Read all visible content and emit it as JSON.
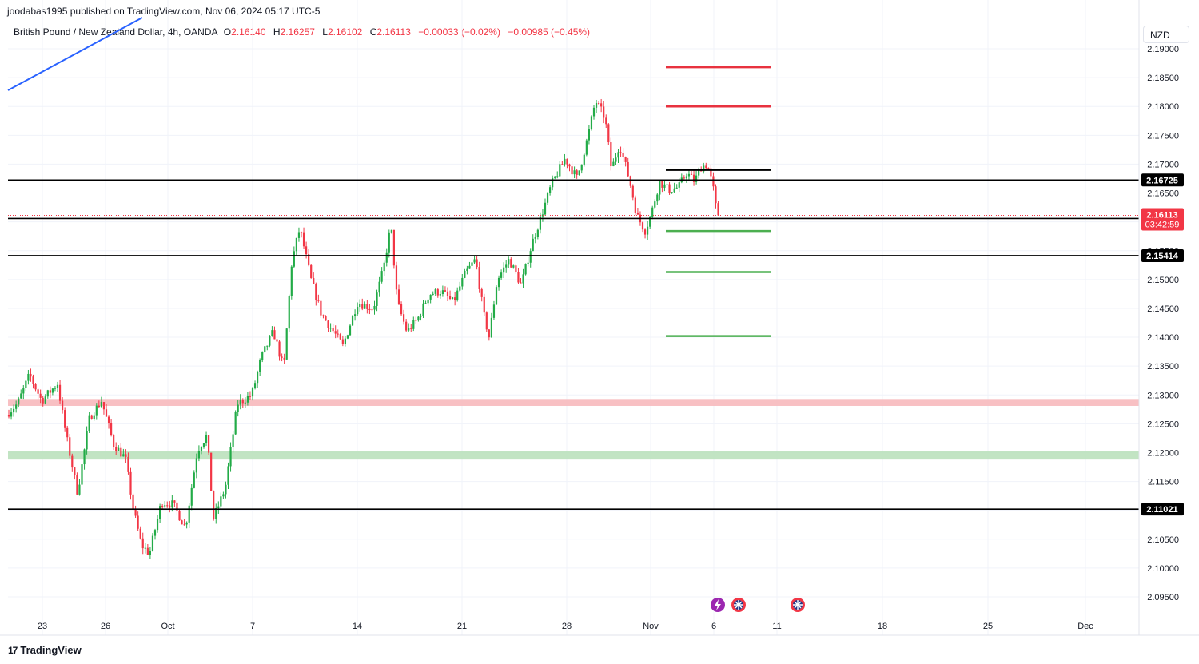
{
  "publisher_line": "joodabas1995 published on TradingView.com, Nov 06, 2024 05:17 UTC-5",
  "legend": {
    "symbol": "British Pound / New Zealand Dollar, 4h, OANDA",
    "o_label": "O",
    "o": "2.16140",
    "h_label": "H",
    "h": "2.16257",
    "l_label": "L",
    "l": "2.16102",
    "c_label": "C",
    "c": "2.16113",
    "change": "−0.00033 (−0.02%)",
    "change2": "−0.00985 (−0.45%)"
  },
  "currency_button": "NZD",
  "footer_brand": "TradingView",
  "footer_mark": "17",
  "colors": {
    "up": "#089981",
    "up_body": "#22ab47",
    "down": "#f23645",
    "line": "#000000",
    "trend": "#2962ff",
    "resistance_zone": "#f7b5b8",
    "support_zone": "#b7dfb9",
    "target_red": "#e8323f",
    "target_green": "#4caf50"
  },
  "chart_data": {
    "type": "candlestick",
    "yticks": [
      "2.19000",
      "2.18500",
      "2.18000",
      "2.17500",
      "2.17000",
      "2.16500",
      "2.16000",
      "2.15500",
      "2.15000",
      "2.14500",
      "2.14000",
      "2.13500",
      "2.13000",
      "2.12500",
      "2.12000",
      "2.11500",
      "2.11000",
      "2.10500",
      "2.10000",
      "2.09500"
    ],
    "ylim": [
      2.0935,
      2.1915
    ],
    "xticks": [
      "23",
      "26",
      "Oct",
      "7",
      "14",
      "21",
      "28",
      "Nov",
      "6",
      "11",
      "18",
      "25",
      "Dec"
    ],
    "horizontal_levels": [
      {
        "price": 2.16725,
        "label": "2.16725"
      },
      {
        "price": 2.16058,
        "label": "2.16058"
      },
      {
        "price": 2.15414,
        "label": "2.15414"
      },
      {
        "price": 2.11021,
        "label": "2.11021"
      }
    ],
    "last_price": {
      "price": 2.16113,
      "label": "2.16113",
      "countdown": "03:42:59"
    },
    "zones": [
      {
        "name": "resistance",
        "from": 2.1281,
        "to": 2.1293
      },
      {
        "name": "support",
        "from": 2.1188,
        "to": 2.1203
      }
    ],
    "targets_red": [
      2.1868,
      2.18
    ],
    "entry_black": 2.169,
    "targets_green": [
      2.1584,
      2.1513,
      2.1402
    ],
    "trendline": {
      "from_date": "Sep 20",
      "from_price": 2.1826,
      "to_date": "Sep 29",
      "to_price": 2.1924
    }
  }
}
